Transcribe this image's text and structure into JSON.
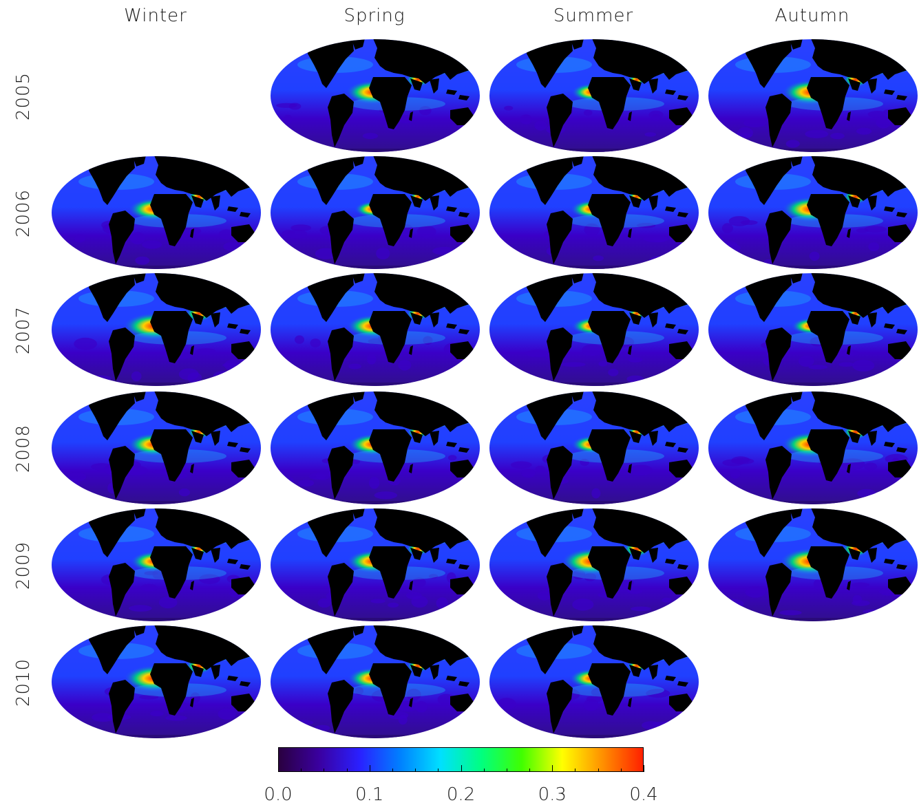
{
  "columns": [
    "Winter",
    "Spring",
    "Summer",
    "Autumn"
  ],
  "rows": [
    "2005",
    "2006",
    "2007",
    "2008",
    "2009",
    "2010"
  ],
  "panels": [
    [
      false,
      true,
      true,
      true
    ],
    [
      true,
      true,
      true,
      true
    ],
    [
      true,
      true,
      true,
      true
    ],
    [
      true,
      true,
      true,
      true
    ],
    [
      true,
      true,
      true,
      true
    ],
    [
      true,
      true,
      true,
      false
    ]
  ],
  "colorbar": {
    "colors": [
      "#2a0040",
      "#3a00a0",
      "#2a20ff",
      "#0080ff",
      "#00e0ff",
      "#00ff80",
      "#40ff00",
      "#ffff00",
      "#ff9000",
      "#ff2000"
    ],
    "ticks": [
      "0.0",
      "0.1",
      "0.2",
      "0.3",
      "0.4"
    ],
    "range": [
      0.0,
      0.4
    ]
  },
  "map_colors": {
    "land": "#000000",
    "ocean_low": "#3a00c8",
    "ocean_mid": "#2040ff",
    "plume": "#00d080",
    "hot": "#ff2000"
  }
}
